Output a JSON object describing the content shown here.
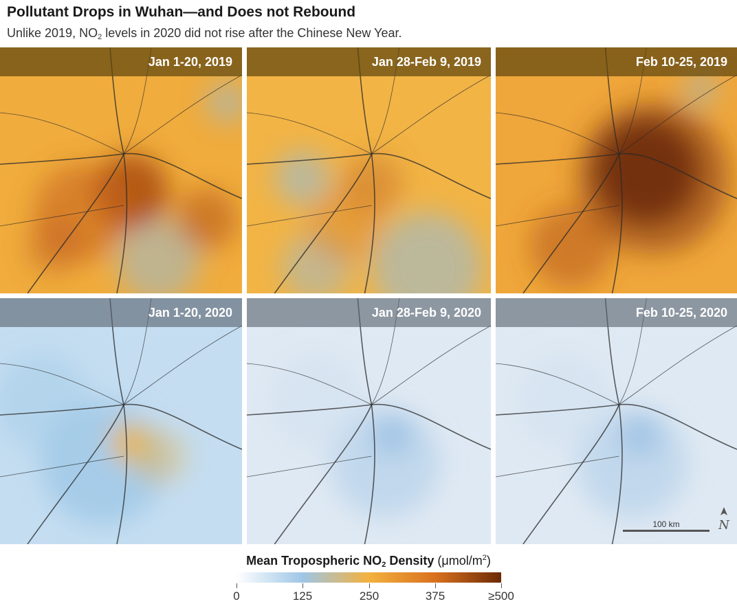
{
  "title": "Pollutant Drops in Wuhan—and Does not Rebound",
  "subtitle": {
    "pre": "Unlike 2019, NO",
    "sub": "2",
    "post": " levels in 2020 did not rise after the Chinese New Year."
  },
  "panels": [
    {
      "label": "Jan 1-20, 2019",
      "year": "2019",
      "no2_level": "high"
    },
    {
      "label": "Jan 28-Feb 9, 2019",
      "year": "2019",
      "no2_level": "moderate"
    },
    {
      "label": "Feb 10-25, 2019",
      "year": "2019",
      "no2_level": "very high"
    },
    {
      "label": "Jan 1-20, 2020",
      "year": "2020",
      "no2_level": "low"
    },
    {
      "label": "Jan 28-Feb 9, 2020",
      "year": "2020",
      "no2_level": "very low"
    },
    {
      "label": "Feb 10-25, 2020",
      "year": "2020",
      "no2_level": "very low"
    }
  ],
  "scale_bar": {
    "label": "100 km"
  },
  "north_arrow": {
    "label": "N"
  },
  "legend": {
    "title_bold_pre": "Mean Tropospheric NO",
    "title_bold_sub": "2",
    "title_bold_post": " Density",
    "units_pre": " (μmol/m",
    "units_sup": "2",
    "units_post": ")",
    "ticks": [
      "0",
      "125",
      "250",
      "375",
      "≥500"
    ],
    "colors": [
      "#ffffff",
      "#9ec6e6",
      "#f3b13e",
      "#d9711f",
      "#6b2a06"
    ]
  }
}
